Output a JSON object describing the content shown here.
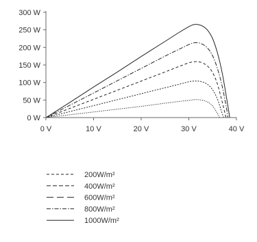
{
  "chart_data": {
    "type": "line",
    "title": "",
    "xlabel": "",
    "ylabel": "",
    "x_unit": "V",
    "y_unit": "W",
    "xlim": [
      0,
      40
    ],
    "ylim": [
      0,
      300
    ],
    "x_ticks": [
      0,
      10,
      20,
      30,
      40
    ],
    "y_ticks": [
      0,
      50,
      100,
      150,
      200,
      250,
      300
    ],
    "x_tick_labels": [
      "0 V",
      "10 V",
      "20 V",
      "30 V",
      "40 V"
    ],
    "y_tick_labels": [
      "0 W",
      "50 W",
      "100 W",
      "150 W",
      "200 W",
      "250 W",
      "300 W"
    ],
    "grid": false,
    "legend_position": "bottom",
    "series": [
      {
        "name": "200W/m²",
        "line_style": "dotted",
        "x": [
          0,
          5,
          10,
          15,
          20,
          25,
          28,
          30,
          31,
          32,
          33,
          34,
          35,
          36,
          36.5
        ],
        "y": [
          0,
          8,
          16,
          24,
          32,
          41,
          46,
          49,
          51,
          51,
          49,
          44,
          33,
          12,
          0
        ]
      },
      {
        "name": "400W/m²",
        "line_style": "dotted-fine",
        "x": [
          0,
          5,
          10,
          15,
          20,
          25,
          28,
          30,
          31,
          32,
          33,
          34,
          35,
          36,
          37,
          37.3
        ],
        "y": [
          0,
          17,
          34,
          51,
          68,
          85,
          95,
          102,
          104,
          104,
          101,
          94,
          79,
          53,
          12,
          0
        ]
      },
      {
        "name": "600W/m²",
        "line_style": "dashed",
        "x": [
          0,
          5,
          10,
          15,
          20,
          25,
          28,
          30,
          31,
          32,
          33,
          34,
          35,
          36,
          37,
          37.8
        ],
        "y": [
          0,
          26,
          52,
          78,
          104,
          130,
          146,
          156,
          159,
          159,
          155,
          146,
          128,
          96,
          45,
          0
        ]
      },
      {
        "name": "800W/m²",
        "line_style": "dash-dot",
        "x": [
          0,
          5,
          10,
          15,
          20,
          25,
          28,
          30,
          31,
          32,
          33,
          34,
          35,
          36,
          37,
          38,
          38.2
        ],
        "y": [
          0,
          35,
          70,
          105,
          140,
          175,
          195,
          208,
          213,
          213,
          208,
          197,
          176,
          140,
          90,
          20,
          0
        ]
      },
      {
        "name": "1000W/m²",
        "line_style": "solid",
        "x": [
          0,
          5,
          10,
          15,
          20,
          25,
          28,
          30,
          31,
          32,
          33,
          34,
          35,
          36,
          37,
          38,
          38.6
        ],
        "y": [
          0,
          43,
          87,
          130,
          174,
          217,
          243,
          259,
          265,
          265,
          260,
          248,
          225,
          185,
          128,
          50,
          0
        ]
      }
    ],
    "legend": [
      {
        "label": "200W/m²",
        "dash": "long-dash-1"
      },
      {
        "label": "400W/m²",
        "dash": "long-dash-2"
      },
      {
        "label": "600W/m²",
        "dash": "long-dash-3"
      },
      {
        "label": "800W/m²",
        "dash": "dash-dot"
      },
      {
        "label": "1000W/m²",
        "dash": "solid"
      }
    ]
  }
}
